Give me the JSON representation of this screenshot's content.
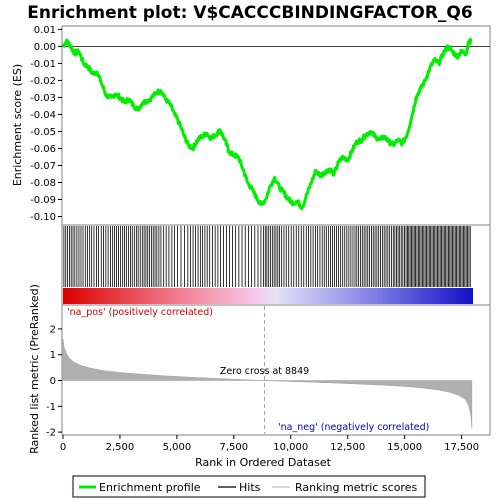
{
  "chart_data": {
    "type": "line",
    "title": "Enrichment plot: V$CACCCBINDINGFACTOR_Q6",
    "top_panel": {
      "ylabel": "Enrichment score (ES)",
      "ylim": [
        -0.105,
        0.012
      ],
      "yticks": [
        0.01,
        0.0,
        -0.01,
        -0.02,
        -0.03,
        -0.04,
        -0.05,
        -0.06,
        -0.07,
        -0.08,
        -0.09,
        -0.1
      ],
      "ytick_labels": [
        "0.01",
        "0.00",
        "-0.01",
        "-0.02",
        "-0.03",
        "-0.04",
        "-0.05",
        "-0.06",
        "-0.07",
        "-0.08",
        "-0.09",
        "-0.10"
      ],
      "series": [
        {
          "name": "Enrichment profile",
          "color": "#00ff00",
          "x": [
            0,
            150,
            300,
            500,
            700,
            900,
            1100,
            1300,
            1500,
            1700,
            1900,
            2100,
            2300,
            2500,
            2700,
            2900,
            3100,
            3300,
            3500,
            3700,
            3900,
            4100,
            4300,
            4500,
            4700,
            4900,
            5100,
            5300,
            5500,
            5700,
            5900,
            6100,
            6300,
            6500,
            6700,
            6900,
            7100,
            7300,
            7500,
            7700,
            7900,
            8100,
            8300,
            8500,
            8700,
            8900,
            9100,
            9300,
            9500,
            9700,
            9900,
            10100,
            10300,
            10500,
            10700,
            10900,
            11100,
            11300,
            11500,
            11700,
            11900,
            12100,
            12300,
            12500,
            12700,
            12900,
            13100,
            13300,
            13500,
            13700,
            13900,
            14100,
            14300,
            14500,
            14700,
            14900,
            15100,
            15300,
            15500,
            15700,
            15900,
            16100,
            16300,
            16500,
            16700,
            16900,
            17100,
            17300,
            17500,
            17700,
            17800,
            17900
          ],
          "y": [
            0.0,
            0.003,
            0.001,
            -0.004,
            -0.003,
            -0.01,
            -0.012,
            -0.016,
            -0.015,
            -0.022,
            -0.029,
            -0.03,
            -0.028,
            -0.03,
            -0.033,
            -0.031,
            -0.035,
            -0.037,
            -0.033,
            -0.032,
            -0.03,
            -0.027,
            -0.026,
            -0.031,
            -0.034,
            -0.04,
            -0.045,
            -0.052,
            -0.058,
            -0.06,
            -0.055,
            -0.053,
            -0.051,
            -0.054,
            -0.052,
            -0.049,
            -0.055,
            -0.062,
            -0.064,
            -0.065,
            -0.072,
            -0.08,
            -0.084,
            -0.089,
            -0.093,
            -0.09,
            -0.082,
            -0.077,
            -0.083,
            -0.086,
            -0.09,
            -0.092,
            -0.091,
            -0.095,
            -0.087,
            -0.08,
            -0.073,
            -0.076,
            -0.074,
            -0.072,
            -0.075,
            -0.068,
            -0.065,
            -0.067,
            -0.061,
            -0.056,
            -0.055,
            -0.052,
            -0.05,
            -0.053,
            -0.055,
            -0.053,
            -0.056,
            -0.058,
            -0.055,
            -0.057,
            -0.052,
            -0.042,
            -0.03,
            -0.025,
            -0.02,
            -0.013,
            -0.008,
            -0.01,
            -0.004,
            0.0,
            -0.003,
            -0.006,
            -0.003,
            -0.004,
            0.002,
            0.003
          ]
        }
      ]
    },
    "hits_panel": {
      "hit_positions": [
        40,
        120,
        200,
        280,
        360,
        440,
        520,
        610,
        700,
        790,
        880,
        980,
        1070,
        1170,
        1260,
        1360,
        1470,
        1560,
        1680,
        1780,
        1880,
        1980,
        2080,
        2180,
        2260,
        2350,
        2440,
        2530,
        2620,
        2700,
        2780,
        2870,
        2960,
        3040,
        3130,
        3220,
        3300,
        3390,
        3480,
        3560,
        3640,
        3720,
        3800,
        3880,
        3960,
        4040,
        4120,
        4210,
        4300,
        4420,
        4530,
        4650,
        4780,
        4900,
        5030,
        5180,
        5330,
        5480,
        5600,
        5710,
        5820,
        5930,
        6030,
        6130,
        6230,
        6330,
        6440,
        6560,
        6680,
        6800,
        6920,
        7050,
        7180,
        7310,
        7440,
        7580,
        7720,
        7860,
        8000,
        8140,
        8280,
        8420,
        8560,
        8690,
        8800,
        8880,
        8950,
        9030,
        9110,
        9190,
        9270,
        9350,
        9430,
        9510,
        9600,
        9700,
        9800,
        9910,
        10020,
        10130,
        10240,
        10350,
        10460,
        10570,
        10680,
        10780,
        10880,
        10980,
        11080,
        11180,
        11280,
        11380,
        11470,
        11560,
        11650,
        11740,
        11830,
        11920,
        12010,
        12100,
        12190,
        12280,
        12370,
        12460,
        12550,
        12640,
        12730,
        12820,
        12900,
        12980,
        13060,
        13140,
        13220,
        13300,
        13380,
        13460,
        13540,
        13620,
        13700,
        13780,
        13860,
        13940,
        14020,
        14100,
        14180,
        14260,
        14340,
        14420,
        14500,
        14570,
        14640,
        14710,
        14780,
        14850,
        14920,
        14990,
        15060,
        15120,
        15180,
        15240,
        15300,
        15360,
        15420,
        15480,
        15540,
        15600,
        15660,
        15720,
        15780,
        15840,
        15900,
        15960,
        16020,
        16080,
        16140,
        16200,
        16260,
        16320,
        16380,
        16440,
        16500,
        16560,
        16620,
        16680,
        16740,
        16800,
        16860,
        16920,
        16980,
        17040,
        17100,
        17160,
        17220,
        17280,
        17340,
        17400,
        17460,
        17520,
        17580,
        17640,
        17700,
        17760,
        17820,
        17880
      ]
    },
    "bottom_panel": {
      "ylabel": "Ranked list metric (PreRanked)",
      "xlabel": "Rank in Ordered Dataset",
      "ylim": [
        -2,
        3
      ],
      "yticks": [
        2,
        1,
        0,
        -1,
        -2
      ],
      "ytick_labels": [
        "2",
        "1",
        "0",
        "-1",
        "-2"
      ],
      "xticks": [
        0,
        2500,
        5000,
        7500,
        10000,
        12500,
        15000,
        17500
      ],
      "xtick_labels": [
        "0",
        "2,500",
        "5,000",
        "7,500",
        "10,000",
        "12,500",
        "15,000",
        "17,500"
      ],
      "xlim": [
        0,
        18900
      ],
      "n_genes": 17950,
      "metric_curve": {
        "rank": [
          0,
          50,
          150,
          300,
          500,
          800,
          1200,
          1800,
          2500,
          3500,
          4500,
          5500,
          6500,
          7500,
          8849,
          10000,
          11000,
          12000,
          13000,
          14000,
          15000,
          15800,
          16500,
          17000,
          17400,
          17650,
          17800,
          17900,
          17950
        ],
        "value": [
          1.6,
          1.3,
          1.05,
          0.85,
          0.7,
          0.58,
          0.48,
          0.38,
          0.31,
          0.24,
          0.18,
          0.13,
          0.09,
          0.05,
          0.0,
          -0.04,
          -0.07,
          -0.1,
          -0.14,
          -0.18,
          -0.23,
          -0.29,
          -0.37,
          -0.46,
          -0.58,
          -0.72,
          -0.95,
          -1.3,
          -1.85
        ]
      },
      "zero_cross_rank": 8849,
      "zero_cross_label": "Zero cross at 8849",
      "pos_label": "'na_pos' (positively correlated)",
      "neg_label": "'na_neg' (negatively correlated)"
    },
    "legend": [
      {
        "name": "Enrichment profile",
        "color": "#00ff00"
      },
      {
        "name": "Hits",
        "color": "#000000"
      },
      {
        "name": "Ranking metric scores",
        "color": "#c0c0c0"
      }
    ]
  }
}
